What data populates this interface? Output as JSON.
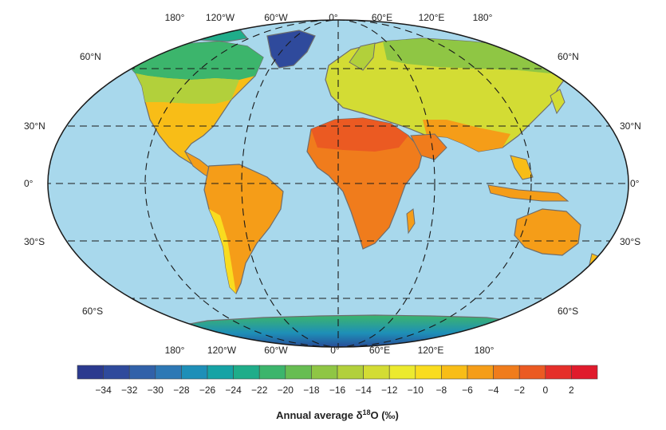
{
  "map": {
    "colors": {
      "ocean": "#a8d8ec",
      "outline": "#1a1a1a",
      "coast": "#6d6d6d",
      "grid": "#1a1a1a"
    },
    "longitude_labels_top": [
      "180°",
      "120°W",
      "60°W",
      "0°",
      "60°E",
      "120°E",
      "180°"
    ],
    "longitude_labels_bottom": [
      "180°",
      "120°W",
      "60°W",
      "0°",
      "60°E",
      "120°E",
      "180°"
    ],
    "latitude_labels_left": [
      "60°N",
      "30°N",
      "0°",
      "30°S",
      "60°S"
    ],
    "latitude_labels_right": [
      "60°N",
      "30°N",
      "0°",
      "30°S",
      "60°S"
    ]
  },
  "colorbar": {
    "title_prefix": "Annual average δ",
    "title_sup": "18",
    "title_suffix": "O (‰)",
    "tick_labels": [
      "−34",
      "−32",
      "−30",
      "−28",
      "−26",
      "−24",
      "−22",
      "−20",
      "−18",
      "−16",
      "−14",
      "−12",
      "−10",
      "−8",
      "−6",
      "−4",
      "−2",
      "0",
      "2"
    ],
    "colors": [
      "#2b3a8f",
      "#2f4a9c",
      "#3161a9",
      "#2d78b5",
      "#1e8fb8",
      "#16a3a5",
      "#1fad8a",
      "#3cb56c",
      "#67bd52",
      "#8fc644",
      "#b2d03b",
      "#d3dc34",
      "#ecea2e",
      "#f9dc1f",
      "#f8bd17",
      "#f59d18",
      "#f07c1c",
      "#eb5a22",
      "#e52f2a",
      "#e01b2c"
    ]
  }
}
